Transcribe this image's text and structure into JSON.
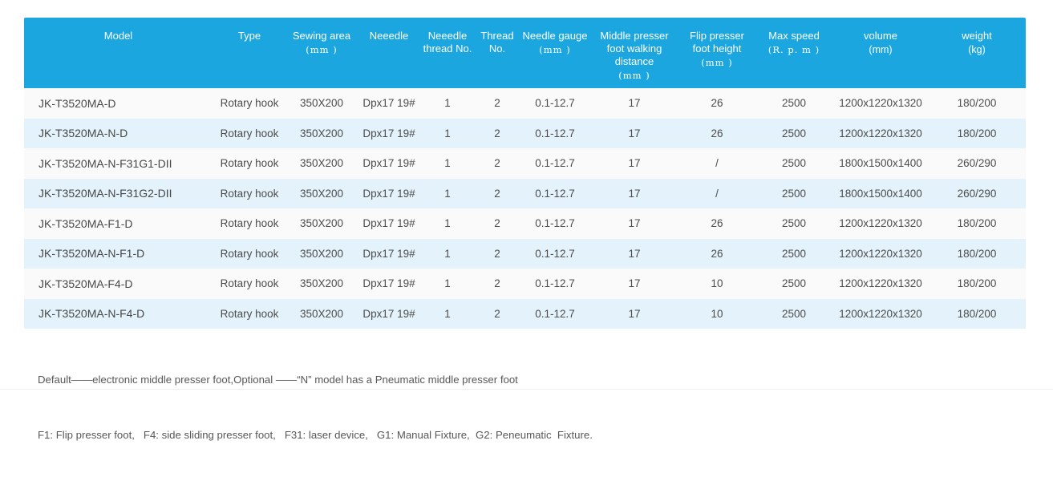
{
  "table": {
    "columns": [
      {
        "label": "Model",
        "unit": ""
      },
      {
        "label": "Type",
        "unit": ""
      },
      {
        "label": "Sewing area",
        "unit": "(mm )"
      },
      {
        "label": "Neeedle",
        "unit": ""
      },
      {
        "label": "Neeedle thread No.",
        "unit": ""
      },
      {
        "label": "Thread No.",
        "unit": ""
      },
      {
        "label": "Needle gauge",
        "unit": "(mm )"
      },
      {
        "label": "Middle presser foot walking distance",
        "unit": "(mm )"
      },
      {
        "label": "Flip presser foot height",
        "unit": "(mm )"
      },
      {
        "label": "Max speed",
        "unit": "(R. p. m )"
      },
      {
        "label": "volume",
        "unit": "(mm)"
      },
      {
        "label": "weight",
        "unit": "(kg)"
      }
    ],
    "rows": [
      [
        "JK-T3520MA-D",
        "Rotary hook",
        "350X200",
        "Dpx17 19#",
        "1",
        "2",
        "0.1-12.7",
        "17",
        "26",
        "2500",
        "1200x1220x1320",
        "180/200"
      ],
      [
        "JK-T3520MA-N-D",
        "Rotary hook",
        "350X200",
        "Dpx17 19#",
        "1",
        "2",
        "0.1-12.7",
        "17",
        "26",
        "2500",
        "1200x1220x1320",
        "180/200"
      ],
      [
        "JK-T3520MA-N-F31G1-DII",
        "Rotary hook",
        "350X200",
        "Dpx17 19#",
        "1",
        "2",
        "0.1-12.7",
        "17",
        "/",
        "2500",
        "1800x1500x1400",
        "260/290"
      ],
      [
        "JK-T3520MA-N-F31G2-DII",
        "Rotary hook",
        "350X200",
        "Dpx17 19#",
        "1",
        "2",
        "0.1-12.7",
        "17",
        "/",
        "2500",
        "1800x1500x1400",
        "260/290"
      ],
      [
        "JK-T3520MA-F1-D",
        "Rotary hook",
        "350X200",
        "Dpx17 19#",
        "1",
        "2",
        "0.1-12.7",
        "17",
        "26",
        "2500",
        "1200x1220x1320",
        "180/200"
      ],
      [
        "JK-T3520MA-N-F1-D",
        "Rotary hook",
        "350X200",
        "Dpx17 19#",
        "1",
        "2",
        "0.1-12.7",
        "17",
        "26",
        "2500",
        "1200x1220x1320",
        "180/200"
      ],
      [
        "JK-T3520MA-F4-D",
        "Rotary hook",
        "350X200",
        "Dpx17 19#",
        "1",
        "2",
        "0.1-12.7",
        "17",
        "10",
        "2500",
        "1200x1220x1320",
        "180/200"
      ],
      [
        "JK-T3520MA-N-F4-D",
        "Rotary hook",
        "350X200",
        "Dpx17 19#",
        "1",
        "2",
        "0.1-12.7",
        "17",
        "10",
        "2500",
        "1200x1220x1320",
        "180/200"
      ]
    ]
  },
  "notes": {
    "line1": "Default——electronic middle presser foot,Optional ——“N” model has a Pneumatic middle presser foot",
    "line2": "F1: Flip presser foot,   F4: side sliding presser foot,   F31: laser device,   G1: Manual Fixture,  G2: Peneumatic  Fixture."
  },
  "colors": {
    "header_blue": "#1BA6E0",
    "row_alt_blue": "#E4F2FB",
    "row_plain": "#FAFAFA",
    "body_text": "#4C4C4C",
    "notes_text": "#575757"
  }
}
